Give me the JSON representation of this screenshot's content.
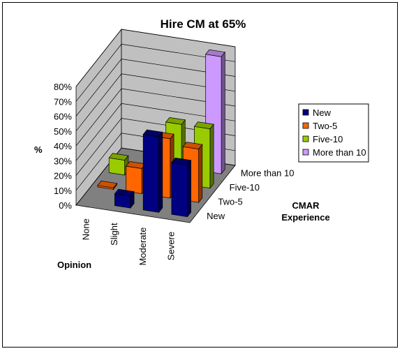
{
  "chart_data": {
    "type": "bar",
    "variant": "3d-column",
    "title": "Hire CM at 65%",
    "xlabel": "Opinion",
    "ylabel": "%",
    "zlabel": "CMAR Experience",
    "categories": [
      "None",
      "Slight",
      "Moderate",
      "Severe"
    ],
    "y_ticks": [
      "0%",
      "10%",
      "20%",
      "30%",
      "40%",
      "50%",
      "60%",
      "70%",
      "80%"
    ],
    "ylim": [
      0,
      80
    ],
    "grid": true,
    "legend_position": "right",
    "series": [
      {
        "name": "New",
        "color": "#000080",
        "values": [
          0,
          8,
          51,
          35
        ]
      },
      {
        "name": "Two-5",
        "color": "#FF6600",
        "values": [
          1,
          17,
          40,
          36
        ]
      },
      {
        "name": "Five-10",
        "color": "#99CC00",
        "values": [
          10,
          0,
          40,
          40
        ]
      },
      {
        "name": "More than 10",
        "color": "#CC99FF",
        "values": [
          0,
          3,
          0,
          79
        ]
      }
    ],
    "depth_labels": [
      "New",
      "Two-5",
      "Five-10",
      "More than 10"
    ]
  }
}
